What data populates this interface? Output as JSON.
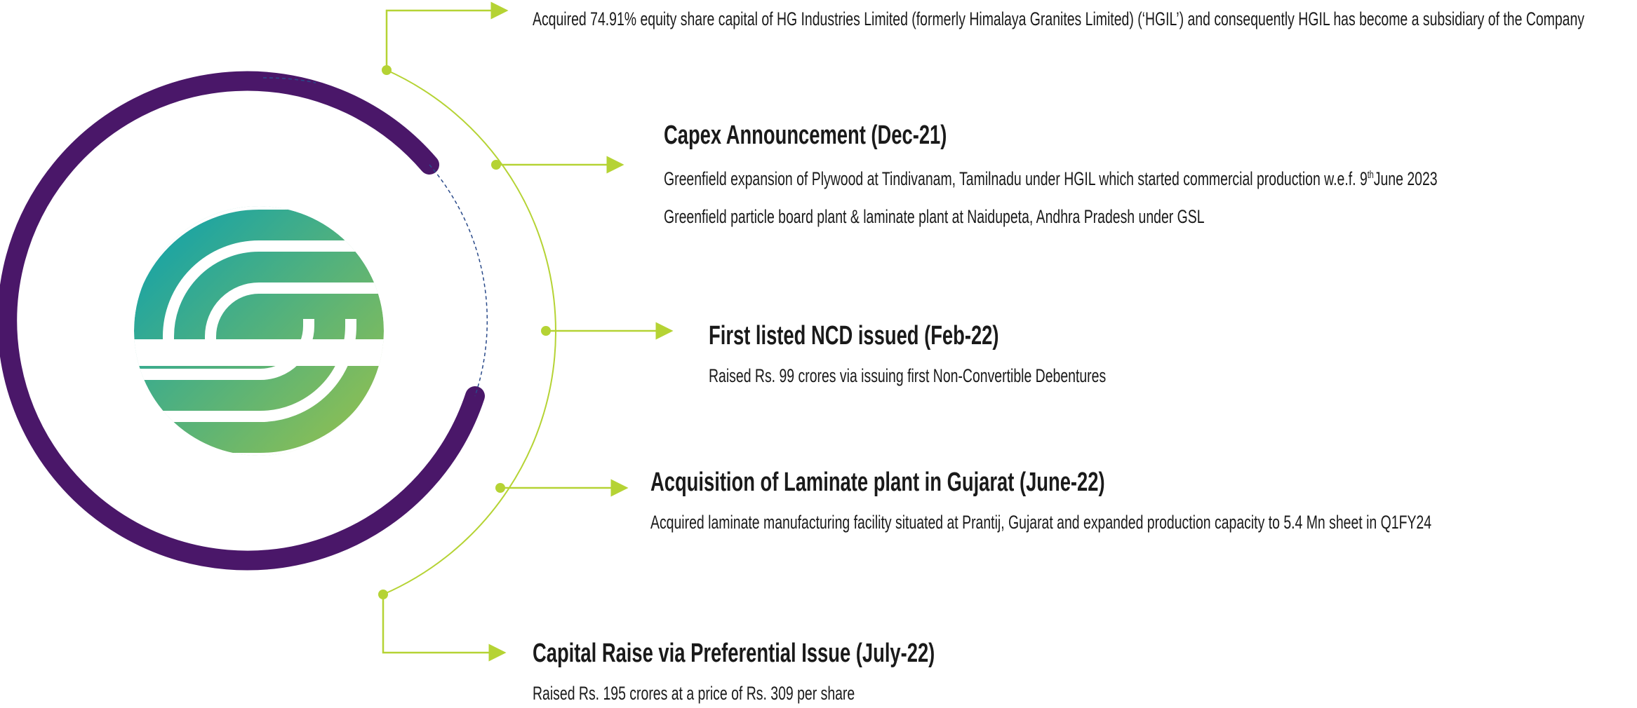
{
  "items": [
    {
      "lines": [
        "Acquired 74.91% equity share capital of HG Industries Limited (formerly Himalaya Granites Limited) (‘HGIL’) and consequently HGIL has become a subsidiary of the Company"
      ]
    },
    {
      "title": "Capex Announcement (Dec-21)",
      "lines": [
        {
          "before": "Greenfield expansion of Plywood at Tindivanam, Tamilnadu under HGIL which started commercial production  w.e.f.  9",
          "sup": "th",
          "after": "June 2023"
        },
        "Greenfield particle board plant & laminate plant at Naidupeta, Andhra Pradesh under GSL"
      ]
    },
    {
      "title": "First listed NCD issued (Feb-22)",
      "lines": [
        "Raised Rs. 99 crores via issuing first Non-Convertible Debentures"
      ]
    },
    {
      "title": "Acquisition of Laminate plant in Gujarat (June-22)",
      "lines": [
        "Acquired laminate manufacturing facility situated at Prantij, Gujarat and expanded production capacity to 5.4 Mn sheet in Q1FY24"
      ]
    },
    {
      "title": "Capital Raise via Preferential Issue (July-22)",
      "lines": [
        "Raised Rs. 195 crores at a price of Rs. 309 per share"
      ]
    }
  ]
}
